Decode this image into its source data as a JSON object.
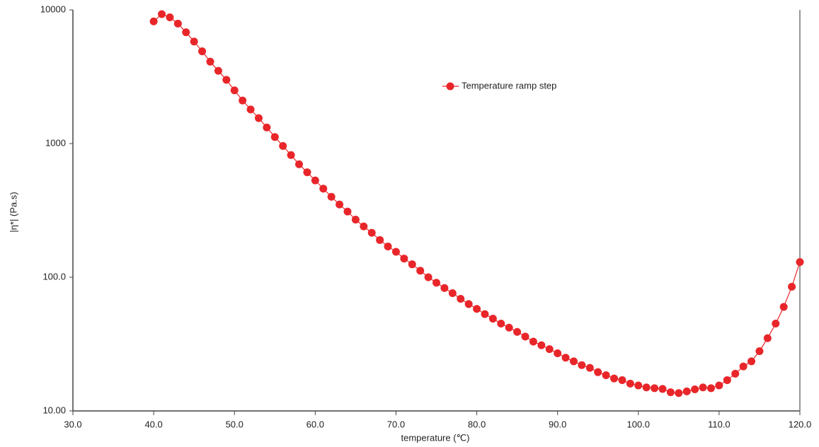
{
  "chart_data": {
    "type": "line",
    "xlabel": "temperature (℃)",
    "ylabel": "|η*| (Pa.s)",
    "x": [
      40,
      41,
      42,
      43,
      44,
      45,
      46,
      47,
      48,
      49,
      50,
      51,
      52,
      53,
      54,
      55,
      56,
      57,
      58,
      59,
      60,
      61,
      62,
      63,
      64,
      65,
      66,
      67,
      68,
      69,
      70,
      71,
      72,
      73,
      74,
      75,
      76,
      77,
      78,
      79,
      80,
      81,
      82,
      83,
      84,
      85,
      86,
      87,
      88,
      89,
      90,
      91,
      92,
      93,
      94,
      95,
      96,
      97,
      98,
      99,
      100,
      101,
      102,
      103,
      104,
      105,
      106,
      107,
      108,
      109,
      110,
      111,
      112,
      113,
      114,
      115,
      116,
      117,
      118,
      119,
      120
    ],
    "series": [
      {
        "name": "Temperature ramp step",
        "color": "#e8262a",
        "values": [
          8200,
          9300,
          8800,
          7900,
          6800,
          5800,
          4900,
          4100,
          3500,
          3000,
          2500,
          2100,
          1800,
          1550,
          1320,
          1120,
          960,
          820,
          700,
          610,
          530,
          460,
          400,
          350,
          310,
          270,
          240,
          215,
          190,
          170,
          155,
          138,
          125,
          112,
          100,
          91,
          83,
          76,
          69,
          63,
          58,
          53,
          49,
          45,
          42,
          39,
          36,
          33,
          31,
          29,
          27,
          25,
          23.5,
          22,
          21,
          19.5,
          18.5,
          17.5,
          17,
          16,
          15.5,
          15,
          14.8,
          14.6,
          13.8,
          13.6,
          14,
          14.5,
          15,
          14.8,
          15.5,
          17,
          19,
          21.5,
          23.5,
          28,
          35,
          45,
          60,
          85,
          130
        ]
      }
    ],
    "xlim": [
      30,
      120
    ],
    "xticks": [
      {
        "value": 30,
        "label": "30.0"
      },
      {
        "value": 40,
        "label": "40.0"
      },
      {
        "value": 50,
        "label": "50.0"
      },
      {
        "value": 60,
        "label": "60.0"
      },
      {
        "value": 70,
        "label": "70.0"
      },
      {
        "value": 80,
        "label": "80.0"
      },
      {
        "value": 90,
        "label": "90.0"
      },
      {
        "value": 100,
        "label": "100.0"
      },
      {
        "value": 110,
        "label": "110.0"
      },
      {
        "value": 120,
        "label": "120.0"
      }
    ],
    "ylim": [
      10,
      10000
    ],
    "yticks": [
      {
        "value": 10,
        "label": "10.00"
      },
      {
        "value": 100,
        "label": "100.0"
      },
      1000,
      10000
    ],
    "yscale": "log",
    "grid": false
  }
}
